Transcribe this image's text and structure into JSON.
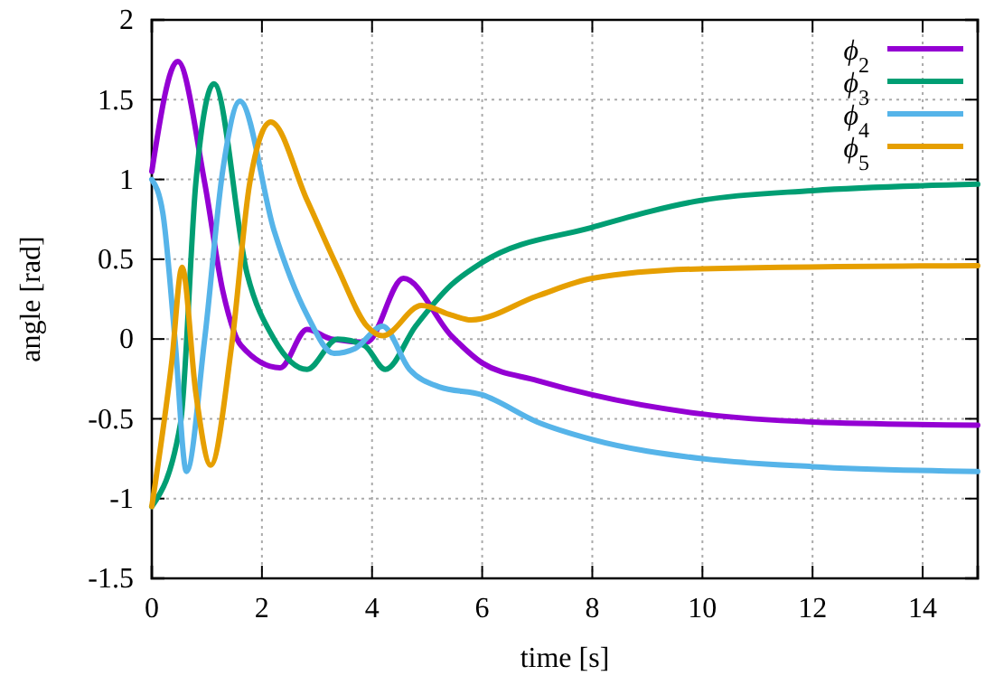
{
  "chart_data": {
    "type": "line",
    "xlabel": "time [s]",
    "ylabel": "angle [rad]",
    "xlim": [
      0,
      15
    ],
    "ylim": [
      -1.5,
      2
    ],
    "xticks": [
      0,
      2,
      4,
      6,
      8,
      10,
      12,
      14
    ],
    "yticks": [
      -1.5,
      -1,
      -0.5,
      0,
      0.5,
      1,
      1.5,
      2
    ],
    "grid": true,
    "legend": "top right",
    "line_style": "solid",
    "marker": "none",
    "series": [
      {
        "name": "ϕ$_{2}$",
        "color": "#9400d3",
        "x": [
          0,
          0.47,
          0.96,
          1.29,
          1.62,
          2.33,
          2.82,
          3.26,
          3.9,
          4.57,
          5.44,
          6,
          7,
          8,
          10,
          12,
          15
        ],
        "values": [
          1.05,
          1.74,
          0.98,
          0.3,
          -0.04,
          -0.18,
          0.06,
          0,
          -0.02,
          0.38,
          0.02,
          -0.15,
          -0.26,
          -0.35,
          -0.47,
          -0.52,
          -0.54
        ]
      },
      {
        "name": "ϕ$_{3}$",
        "color": "#009e73",
        "x": [
          0,
          0.52,
          0.8,
          1.13,
          1.73,
          2.22,
          2.82,
          3.37,
          3.86,
          4.24,
          4.79,
          5.44,
          6,
          8,
          10,
          12,
          15
        ],
        "values": [
          -1.05,
          -0.53,
          0.98,
          1.6,
          0.41,
          0,
          -0.19,
          0,
          -0.04,
          -0.19,
          0.08,
          0.34,
          0.48,
          0.7,
          0.87,
          0.93,
          0.97
        ]
      },
      {
        "name": "ϕ$_{4}$",
        "color": "#56b4e9",
        "x": [
          0,
          0.2,
          0.42,
          0.63,
          0.96,
          1.29,
          1.6,
          2.22,
          2.82,
          3.31,
          3.69,
          4.19,
          4.68,
          5.22,
          6,
          7,
          8,
          10,
          12,
          15
        ],
        "values": [
          1.0,
          0.79,
          0,
          -0.83,
          0,
          1.06,
          1.49,
          0.68,
          0.15,
          -0.09,
          -0.06,
          0.08,
          -0.19,
          -0.3,
          -0.35,
          -0.52,
          -0.63,
          -0.75,
          -0.8,
          -0.83
        ]
      },
      {
        "name": "ϕ$_{5}$",
        "color": "#e69f00",
        "x": [
          0,
          0.36,
          0.55,
          0.8,
          1.07,
          1.45,
          1.78,
          2.16,
          2.82,
          3.37,
          3.91,
          4.19,
          4.9,
          5.44,
          5.8,
          7,
          8,
          10,
          15
        ],
        "values": [
          -1.05,
          -0.15,
          0.45,
          -0.34,
          -0.79,
          -0.04,
          0.98,
          1.36,
          0.87,
          0.45,
          0.08,
          0.02,
          0.21,
          0.15,
          0.12,
          0.27,
          0.38,
          0.44,
          0.46
        ]
      }
    ]
  }
}
